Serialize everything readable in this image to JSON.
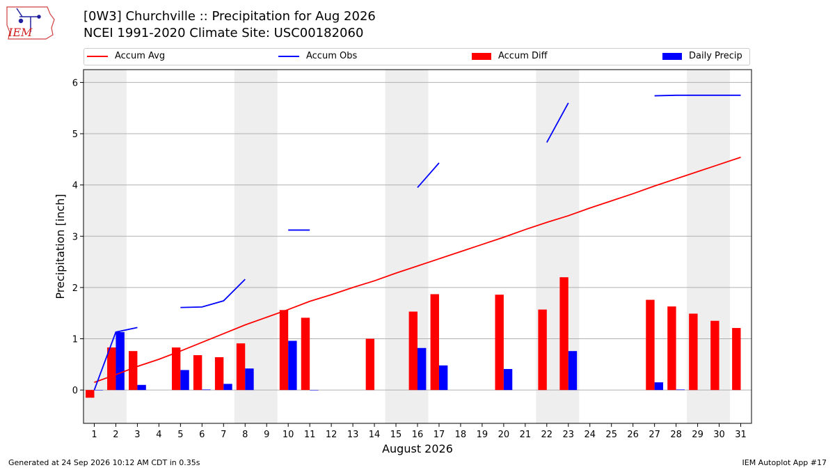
{
  "header": {
    "logo_text": "IEM",
    "title_line1": "[0W3] Churchville :: Precipitation for Aug 2026",
    "title_line2": "NCEI 1991-2020 Climate Site: USC00182060"
  },
  "footer": {
    "left": "Generated at 24 Sep 2026 10:12 AM CDT in 0.35s",
    "right": "IEM Autoplot App #17"
  },
  "colors": {
    "accum_avg": "#ff0000",
    "accum_obs": "#0000ff",
    "accum_diff": "#ff0000",
    "daily_precip": "#0000ff",
    "weekend_shade": "#eeeeee",
    "grid": "#b0b0b0"
  },
  "chart_data": {
    "type": "bar",
    "xlabel": "August 2026",
    "ylabel": "Precipitation [inch]",
    "ylim": [
      -0.65,
      6.25
    ],
    "xlim": [
      0.5,
      31.5
    ],
    "yticks": [
      0,
      1,
      2,
      3,
      4,
      5,
      6
    ],
    "xticks": [
      1,
      2,
      3,
      4,
      5,
      6,
      7,
      8,
      9,
      10,
      11,
      12,
      13,
      14,
      15,
      16,
      17,
      18,
      19,
      20,
      21,
      22,
      23,
      24,
      25,
      26,
      27,
      28,
      29,
      30,
      31
    ],
    "grid": "horizontal",
    "legend": [
      "Accum Avg",
      "Accum Obs",
      "Accum Diff",
      "Daily Precip"
    ],
    "legend_placement": "top",
    "weekend_shading": [
      [
        1,
        2
      ],
      [
        8,
        9
      ],
      [
        15,
        16
      ],
      [
        22,
        23
      ],
      [
        29,
        30
      ]
    ],
    "days": [
      1,
      2,
      3,
      4,
      5,
      6,
      7,
      8,
      9,
      10,
      11,
      12,
      13,
      14,
      15,
      16,
      17,
      18,
      19,
      20,
      21,
      22,
      23,
      24,
      25,
      26,
      27,
      28,
      29,
      30,
      31
    ],
    "series": [
      {
        "name": "Accum Avg",
        "kind": "line",
        "values": [
          0.15,
          0.3,
          0.46,
          0.6,
          0.76,
          0.93,
          1.1,
          1.27,
          1.42,
          1.57,
          1.73,
          1.86,
          2.0,
          2.13,
          2.28,
          2.42,
          2.56,
          2.7,
          2.84,
          2.98,
          3.13,
          3.27,
          3.4,
          3.55,
          3.69,
          3.83,
          3.98,
          4.12,
          4.26,
          4.4,
          4.54
        ]
      },
      {
        "name": "Accum Obs",
        "kind": "line",
        "values": [
          0.0,
          1.13,
          1.22,
          null,
          1.61,
          1.62,
          1.74,
          2.16,
          null,
          3.12,
          3.12,
          null,
          null,
          null,
          null,
          3.95,
          4.43,
          null,
          null,
          null,
          null,
          4.83,
          5.6,
          null,
          null,
          null,
          5.74,
          5.75,
          5.75,
          5.75,
          5.75
        ]
      },
      {
        "name": "Accum Diff",
        "kind": "bar",
        "values": [
          -0.15,
          0.83,
          0.76,
          null,
          0.83,
          0.68,
          0.64,
          0.91,
          null,
          1.56,
          1.41,
          null,
          null,
          1.0,
          null,
          1.53,
          1.87,
          null,
          null,
          1.86,
          null,
          1.57,
          2.2,
          null,
          null,
          null,
          1.76,
          1.63,
          1.49,
          1.35,
          1.21
        ]
      },
      {
        "name": "Daily Precip",
        "kind": "bar",
        "values": [
          0.0,
          1.13,
          0.1,
          null,
          0.39,
          0.01,
          0.12,
          0.42,
          null,
          0.96,
          0.0,
          null,
          null,
          null,
          null,
          0.82,
          0.48,
          null,
          null,
          0.41,
          null,
          null,
          0.76,
          null,
          null,
          null,
          0.15,
          0.01,
          null,
          null,
          null
        ]
      }
    ]
  }
}
